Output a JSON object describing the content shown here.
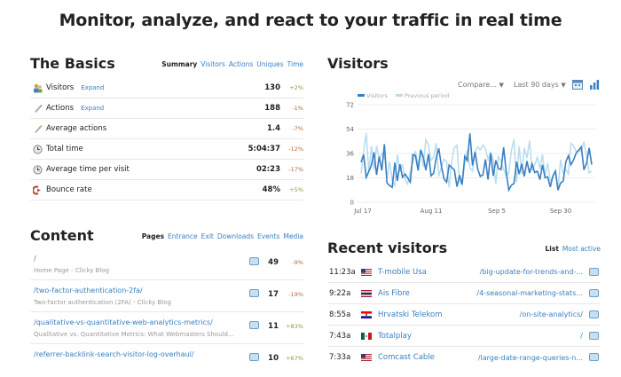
{
  "headline": "Monitor, analyze, and react to your traffic in real time",
  "basics": {
    "title": "The Basics",
    "tabs": [
      "Summary",
      "Visitors",
      "Actions",
      "Uniques",
      "Time"
    ],
    "rows": [
      {
        "label": "Visitors",
        "expand": "Expand",
        "value": "130",
        "change": "+2%",
        "icon": "visitors-icon"
      },
      {
        "label": "Actions",
        "expand": "Expand",
        "value": "188",
        "change": "-1%",
        "icon": "actions-icon"
      },
      {
        "label": "Average actions",
        "expand": "",
        "value": "1.4",
        "change": "-7%",
        "icon": "average-actions-icon"
      },
      {
        "label": "Total time",
        "expand": "",
        "value": "5:04:37",
        "change": "-12%",
        "icon": "clock-icon"
      },
      {
        "label": "Average time per visit",
        "expand": "",
        "value": "02:23",
        "change": "-17%",
        "icon": "clock-icon"
      },
      {
        "label": "Bounce rate",
        "expand": "",
        "value": "48%",
        "change": "+5%",
        "icon": "bounce-icon"
      }
    ]
  },
  "content": {
    "title": "Content",
    "tabs": [
      "Pages",
      "Entrance",
      "Exit",
      "Downloads",
      "Events",
      "Media"
    ],
    "rows": [
      {
        "url": "/",
        "title": "Home Page - Clicky Blog",
        "count": "49",
        "change": "-9%"
      },
      {
        "url": "/two-factor-authentication-2fa/",
        "title": "Two-factor authentication (2FA) - Clicky Blog",
        "count": "17",
        "change": "-19%"
      },
      {
        "url": "/qualitative-vs-quantitative-web-analytics-metrics/",
        "title": "Qualitative vs. Quantitative Metrics: What Webmasters Should...",
        "count": "11",
        "change": "+83%"
      },
      {
        "url": "/referrer-backlink-search-visitor-log-overhaul/",
        "title": "",
        "count": "10",
        "change": "+67%"
      }
    ]
  },
  "visitors": {
    "title": "Visitors",
    "compare_label": "Compare...",
    "range_label": "Last 90 days",
    "chart_data": {
      "type": "line",
      "series": [
        {
          "name": "Visitors",
          "color": "#3a7fc1"
        },
        {
          "name": "Previous period",
          "color": "#b7dcef"
        }
      ],
      "ylim": [
        0,
        72
      ],
      "yticks": [
        "0",
        "18",
        "36",
        "54",
        "72"
      ],
      "xticks": [
        "Jul 17",
        "Aug 11",
        "Sep 5",
        "Sep 30"
      ]
    }
  },
  "recent": {
    "title": "Recent visitors",
    "tabs": [
      "List",
      "Most active"
    ],
    "rows": [
      {
        "time": "11:23a",
        "flag": "us",
        "isp": "T-mobile Usa",
        "path": "/big-update-for-trends-and-..."
      },
      {
        "time": "9:22a",
        "flag": "th",
        "isp": "Ais Fibre",
        "path": "/4-seasonal-marketing-stats..."
      },
      {
        "time": "8:55a",
        "flag": "hr",
        "isp": "Hrvatski Telekom",
        "path": "/on-site-analytics/"
      },
      {
        "time": "7:43a",
        "flag": "mx",
        "isp": "Totalplay",
        "path": "/"
      },
      {
        "time": "7:33a",
        "flag": "us",
        "isp": "Comcast Cable",
        "path": "/large-date-range-queries-n..."
      }
    ]
  }
}
